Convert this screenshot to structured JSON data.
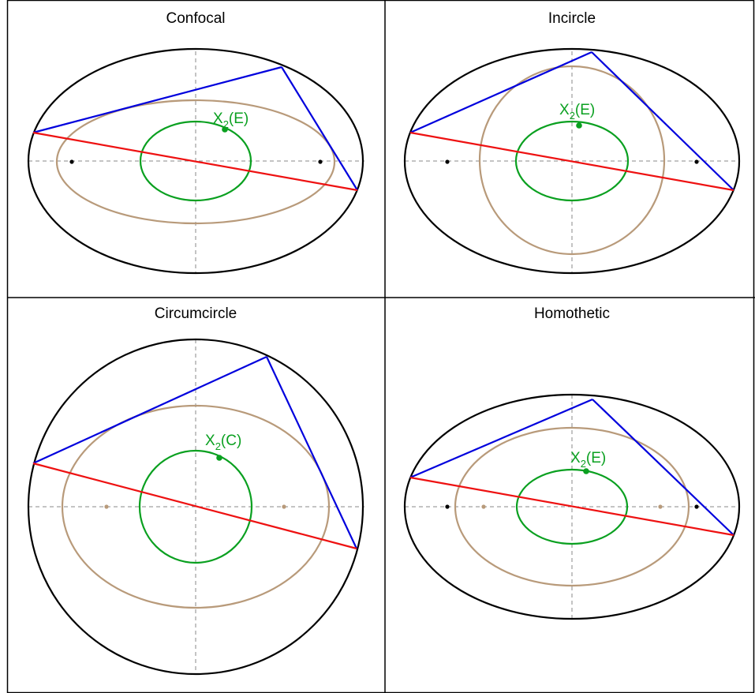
{
  "colors": {
    "outer_ellipse": "#000000",
    "caustic": "#b89a7a",
    "locus": "#0aa020",
    "triangle_side": "#0000dd",
    "triangle_base": "#ee1111",
    "axes": "#888888",
    "frame": "#000000"
  },
  "panels": [
    {
      "id": "confocal",
      "title": "Confocal",
      "label_main": "X",
      "label_sub": "2",
      "label_arg": "(E)",
      "shape": "ellipse",
      "focus_color": "#000000"
    },
    {
      "id": "incircle",
      "title": "Incircle",
      "label_main": "X",
      "label_sub": "2",
      "label_arg": "(E)",
      "shape": "ellipse",
      "focus_color": "#000000"
    },
    {
      "id": "circumcircle",
      "title": "Circumcircle",
      "label_main": "X",
      "label_sub": "2",
      "label_arg": "(C)",
      "shape": "circle",
      "focus_color": "#b89a7a"
    },
    {
      "id": "homothetic",
      "title": "Homothetic",
      "label_main": "X",
      "label_sub": "2",
      "label_arg": "(E)",
      "shape": "ellipse",
      "focus_color": "#b89a7a"
    }
  ]
}
